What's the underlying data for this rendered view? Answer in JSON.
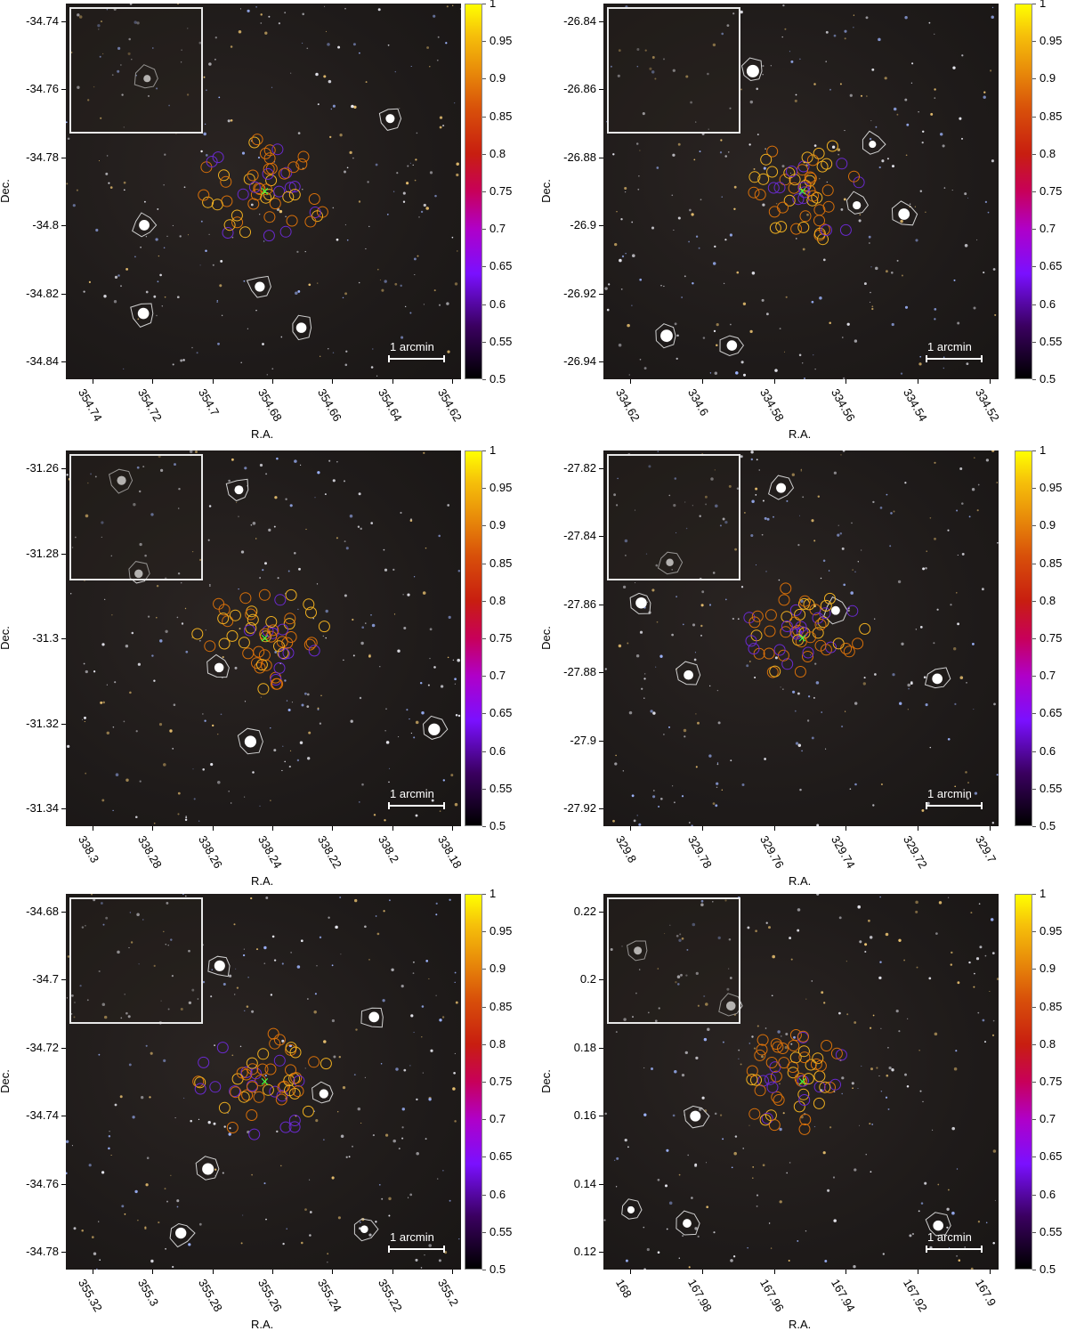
{
  "common": {
    "ra_label": "R.A.",
    "dec_label": "Dec.",
    "scale_label": "1 arcmin",
    "colorbar_ticks": [
      "1",
      "0.95",
      "0.9",
      "0.85",
      "0.8",
      "0.75",
      "0.7",
      "0.65",
      "0.6",
      "0.55",
      "0.5"
    ],
    "colorbar_colors": {
      "low": "#000000",
      "mid_violet": "#7a10ff",
      "mid_red": "#c81e10",
      "high": "#ffff00"
    }
  },
  "panels": [
    {
      "id": "p1",
      "ra_ticks": [
        "354.74",
        "354.72",
        "354.7",
        "354.68",
        "354.66",
        "354.64",
        "354.62"
      ],
      "dec_ticks": [
        "-34.74",
        "-34.76",
        "-34.78",
        "-34.8",
        "-34.82",
        "-34.84"
      ]
    },
    {
      "id": "p2",
      "ra_ticks": [
        "334.62",
        "334.6",
        "334.58",
        "334.56",
        "334.54",
        "334.52"
      ],
      "dec_ticks": [
        "-26.84",
        "-26.86",
        "-26.88",
        "-26.9",
        "-26.92",
        "-26.94"
      ]
    },
    {
      "id": "p3",
      "ra_ticks": [
        "338.3",
        "338.28",
        "338.26",
        "338.24",
        "338.22",
        "338.2",
        "338.18"
      ],
      "dec_ticks": [
        "-31.26",
        "-31.28",
        "-31.3",
        "-31.32",
        "-31.34"
      ]
    },
    {
      "id": "p4",
      "ra_ticks": [
        "329.8",
        "329.78",
        "329.76",
        "329.74",
        "329.72",
        "329.7"
      ],
      "dec_ticks": [
        "-27.82",
        "-27.84",
        "-27.86",
        "-27.88",
        "-27.9",
        "-27.92"
      ]
    },
    {
      "id": "p5",
      "ra_ticks": [
        "355.32",
        "355.3",
        "355.28",
        "355.26",
        "355.24",
        "355.22",
        "355.2"
      ],
      "dec_ticks": [
        "-34.68",
        "-34.7",
        "-34.72",
        "-34.74",
        "-34.76",
        "-34.78"
      ]
    },
    {
      "id": "p6",
      "ra_ticks": [
        "168",
        "167.98",
        "167.96",
        "167.94",
        "167.92",
        "167.9"
      ],
      "dec_ticks": [
        "0.22",
        "0.2",
        "0.18",
        "0.16",
        "0.14",
        "0.12"
      ]
    }
  ]
}
